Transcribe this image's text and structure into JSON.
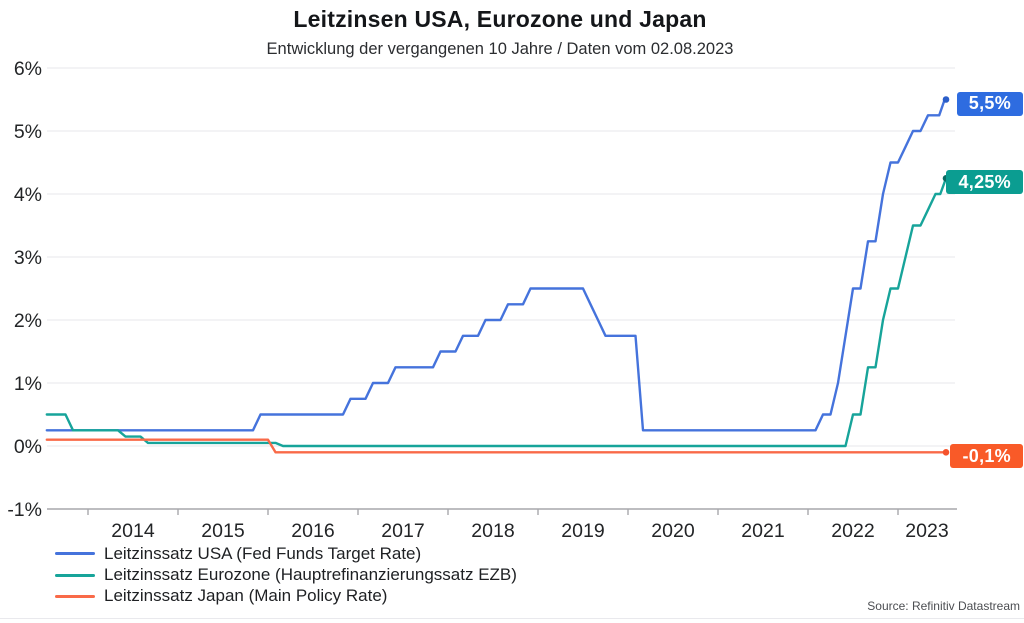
{
  "header": {
    "title": "Leitzinsen USA, Eurozone und Japan",
    "subtitle": "Entwicklung der vergangenen 10 Jahre / Daten vom 02.08.2023"
  },
  "source_note": "Source: Refinitiv Datastream",
  "chart_data": {
    "type": "line",
    "title": "Leitzinsen USA, Eurozone und Japan",
    "subtitle": "Entwicklung der vergangenen 10 Jahre / Daten vom 02.08.2023",
    "grid": "horizontal",
    "legend_position": "bottom-left",
    "x_axis": {
      "unit": "year",
      "range": [
        2013.54,
        2023.65
      ],
      "tick_years": [
        2014,
        2015,
        2016,
        2017,
        2018,
        2019,
        2020,
        2021,
        2022,
        2023
      ],
      "tick_labels": [
        "2014",
        "2015",
        "2016",
        "2017",
        "2018",
        "2019",
        "2020",
        "2021",
        "2022",
        "2023"
      ]
    },
    "y_axis": {
      "unit": "percent",
      "range": [
        -1,
        6
      ],
      "ticks": [
        -1,
        0,
        1,
        2,
        3,
        4,
        5,
        6
      ],
      "tick_labels": [
        "-1%",
        "0%",
        "1%",
        "2%",
        "3%",
        "4%",
        "5%",
        "6%"
      ]
    },
    "series": [
      {
        "key": "usa",
        "name": "Leitzinssatz USA (Fed Funds Target Rate)",
        "color": "#4573dc",
        "dot_color": "#2b5ec9",
        "badge_color": "#2e6ce0",
        "end_label": "5,5%",
        "end_value": 5.5,
        "points": [
          [
            2013.542,
            0.25
          ],
          [
            2015.833,
            0.25
          ],
          [
            2015.917,
            0.5
          ],
          [
            2016.833,
            0.5
          ],
          [
            2016.917,
            0.75
          ],
          [
            2017.083,
            0.75
          ],
          [
            2017.167,
            1.0
          ],
          [
            2017.333,
            1.0
          ],
          [
            2017.417,
            1.25
          ],
          [
            2017.833,
            1.25
          ],
          [
            2017.917,
            1.5
          ],
          [
            2018.083,
            1.5
          ],
          [
            2018.167,
            1.75
          ],
          [
            2018.333,
            1.75
          ],
          [
            2018.417,
            2.0
          ],
          [
            2018.583,
            2.0
          ],
          [
            2018.667,
            2.25
          ],
          [
            2018.833,
            2.25
          ],
          [
            2018.917,
            2.5
          ],
          [
            2019.5,
            2.5
          ],
          [
            2019.583,
            2.25
          ],
          [
            2019.667,
            2.0
          ],
          [
            2019.75,
            1.75
          ],
          [
            2020.083,
            1.75
          ],
          [
            2020.167,
            0.25
          ],
          [
            2022.083,
            0.25
          ],
          [
            2022.167,
            0.5
          ],
          [
            2022.25,
            0.5
          ],
          [
            2022.333,
            1.0
          ],
          [
            2022.417,
            1.75
          ],
          [
            2022.5,
            2.5
          ],
          [
            2022.583,
            2.5
          ],
          [
            2022.667,
            3.25
          ],
          [
            2022.75,
            3.25
          ],
          [
            2022.833,
            4.0
          ],
          [
            2022.917,
            4.5
          ],
          [
            2023.0,
            4.5
          ],
          [
            2023.083,
            4.75
          ],
          [
            2023.167,
            5.0
          ],
          [
            2023.25,
            5.0
          ],
          [
            2023.333,
            5.25
          ],
          [
            2023.458,
            5.25
          ],
          [
            2023.519,
            5.5
          ],
          [
            2023.533,
            5.5
          ]
        ]
      },
      {
        "key": "eurozone",
        "name": "Leitzinssatz Eurozone (Hauptrefinanzierungssatz EZB)",
        "color": "#17a49a",
        "dot_color": "#0a6a62",
        "badge_color": "#0b9d91",
        "end_label": "4,25%",
        "end_value": 4.25,
        "points": [
          [
            2013.542,
            0.5
          ],
          [
            2013.75,
            0.5
          ],
          [
            2013.833,
            0.25
          ],
          [
            2014.333,
            0.25
          ],
          [
            2014.417,
            0.15
          ],
          [
            2014.583,
            0.15
          ],
          [
            2014.667,
            0.05
          ],
          [
            2016.083,
            0.05
          ],
          [
            2016.167,
            0.0
          ],
          [
            2022.417,
            0.0
          ],
          [
            2022.5,
            0.5
          ],
          [
            2022.583,
            0.5
          ],
          [
            2022.667,
            1.25
          ],
          [
            2022.75,
            1.25
          ],
          [
            2022.833,
            2.0
          ],
          [
            2022.917,
            2.5
          ],
          [
            2023.0,
            2.5
          ],
          [
            2023.083,
            3.0
          ],
          [
            2023.167,
            3.5
          ],
          [
            2023.25,
            3.5
          ],
          [
            2023.333,
            3.75
          ],
          [
            2023.417,
            4.0
          ],
          [
            2023.47,
            4.0
          ],
          [
            2023.533,
            4.25
          ]
        ]
      },
      {
        "key": "japan",
        "name": "Leitzinssatz Japan (Main Policy Rate)",
        "color": "#f96a48",
        "dot_color": "#f5532c",
        "badge_color": "#f95a28",
        "end_label": "-0,1%",
        "end_value": -0.1,
        "points": [
          [
            2013.542,
            0.1
          ],
          [
            2016.0,
            0.1
          ],
          [
            2016.083,
            -0.1
          ],
          [
            2023.533,
            -0.1
          ]
        ]
      }
    ]
  }
}
